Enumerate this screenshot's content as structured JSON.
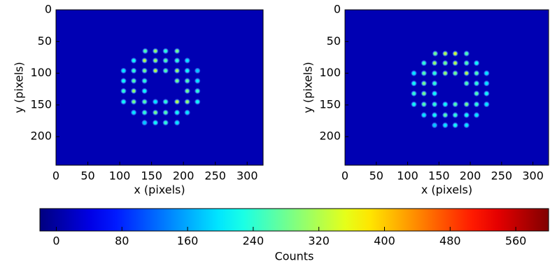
{
  "chart_data": [
    {
      "type": "heatmap",
      "xlabel": "x (pixels)",
      "ylabel": "y (pixels)",
      "xlim": [
        0,
        325
      ],
      "ylim": [
        245,
        0
      ],
      "xticks": [
        0,
        50,
        100,
        150,
        200,
        250,
        300
      ],
      "yticks": [
        0,
        50,
        100,
        150,
        200
      ],
      "spots_x": [
        140,
        156,
        172,
        190,
        122,
        139,
        156,
        172,
        190,
        206,
        106,
        122,
        139,
        156,
        172,
        190,
        206,
        222,
        106,
        122,
        139,
        190,
        206,
        222,
        106,
        122,
        139,
        206,
        222,
        106,
        122,
        139,
        156,
        172,
        190,
        206,
        222,
        122,
        139,
        156,
        172,
        190,
        206,
        139,
        156,
        172,
        190
      ],
      "spots_y": [
        65,
        65,
        65,
        65,
        80,
        80,
        80,
        80,
        80,
        80,
        96,
        96,
        96,
        96,
        96,
        96,
        96,
        96,
        112,
        112,
        112,
        112,
        112,
        112,
        128,
        128,
        128,
        128,
        128,
        145,
        145,
        145,
        145,
        145,
        145,
        145,
        145,
        162,
        162,
        162,
        162,
        162,
        162,
        178,
        178,
        178,
        178
      ],
      "values": [
        260,
        300,
        240,
        280,
        220,
        320,
        300,
        260,
        240,
        200,
        200,
        240,
        280,
        320,
        260,
        300,
        220,
        180,
        220,
        260,
        240,
        280,
        260,
        200,
        240,
        300,
        220,
        280,
        240,
        220,
        280,
        260,
        200,
        240,
        320,
        300,
        220,
        200,
        240,
        280,
        260,
        220,
        200,
        180,
        220,
        240,
        200
      ]
    },
    {
      "type": "heatmap",
      "xlabel": "x (pixels)",
      "ylabel": "y (pixels)",
      "xlim": [
        0,
        325
      ],
      "ylim": [
        245,
        0
      ],
      "xticks": [
        0,
        50,
        100,
        150,
        200,
        250,
        300
      ],
      "yticks": [
        0,
        50,
        100,
        150,
        200
      ],
      "spots_x": [
        144,
        160,
        176,
        194,
        126,
        143,
        160,
        176,
        194,
        210,
        110,
        126,
        143,
        160,
        176,
        194,
        210,
        226,
        110,
        126,
        143,
        194,
        210,
        226,
        110,
        126,
        143,
        210,
        226,
        110,
        126,
        143,
        160,
        176,
        194,
        210,
        226,
        126,
        143,
        160,
        176,
        194,
        210,
        143,
        160,
        176,
        194
      ],
      "spots_y": [
        69,
        69,
        69,
        69,
        84,
        84,
        84,
        84,
        84,
        84,
        100,
        100,
        100,
        100,
        100,
        100,
        100,
        100,
        116,
        116,
        116,
        116,
        116,
        116,
        132,
        132,
        132,
        132,
        132,
        149,
        149,
        149,
        149,
        149,
        149,
        149,
        149,
        166,
        166,
        166,
        166,
        166,
        166,
        182,
        182,
        182,
        182
      ],
      "values": [
        280,
        320,
        340,
        260,
        240,
        300,
        280,
        320,
        260,
        220,
        200,
        260,
        240,
        300,
        280,
        320,
        260,
        200,
        220,
        280,
        240,
        260,
        240,
        200,
        240,
        280,
        220,
        260,
        220,
        220,
        260,
        240,
        220,
        260,
        280,
        240,
        200,
        200,
        220,
        260,
        240,
        220,
        200,
        180,
        200,
        220,
        200
      ]
    }
  ],
  "colorbar": {
    "label": "Counts",
    "lim": [
      -20,
      600
    ],
    "ticks": [
      0,
      80,
      160,
      240,
      320,
      400,
      480,
      560
    ]
  }
}
